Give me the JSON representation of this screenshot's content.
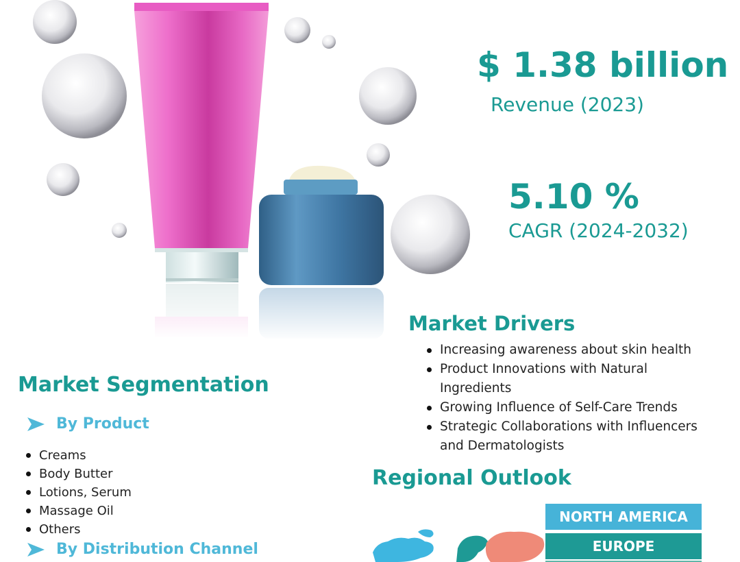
{
  "stats": {
    "revenue_value": "$ 1.38 billion",
    "revenue_label": "Revenue (2023)",
    "cagr_value": "5.10 %",
    "cagr_label": "CAGR (2024-2032)"
  },
  "drivers": {
    "title": "Market Drivers",
    "items": [
      "Increasing awareness about skin health",
      "Product Innovations with Natural Ingredients",
      "Growing Influence of Self-Care Trends",
      "Strategic Collaborations with Influencers and Dermatologists"
    ]
  },
  "segmentation": {
    "title": "Market Segmentation",
    "by_product": "By Product",
    "products": [
      "Creams",
      "Body Butter",
      "Lotions, Serum",
      "Massage Oil",
      "Others"
    ],
    "by_distribution": "By Distribution Channel"
  },
  "regional": {
    "title": "Regional Outlook",
    "regions": [
      "NORTH AMERICA",
      "EUROPE"
    ]
  },
  "icons": [
    "arrow-right-icon",
    "bubble-icon",
    "cosmetic-tube-icon",
    "cream-jar-icon",
    "world-map-icon"
  ],
  "colors": {
    "teal": "#1a9a93",
    "light_blue": "#4fb8d8",
    "tube_pink": "#e05cbf",
    "jar_blue": "#4a7fa8",
    "map_coral": "#ef8a78"
  }
}
